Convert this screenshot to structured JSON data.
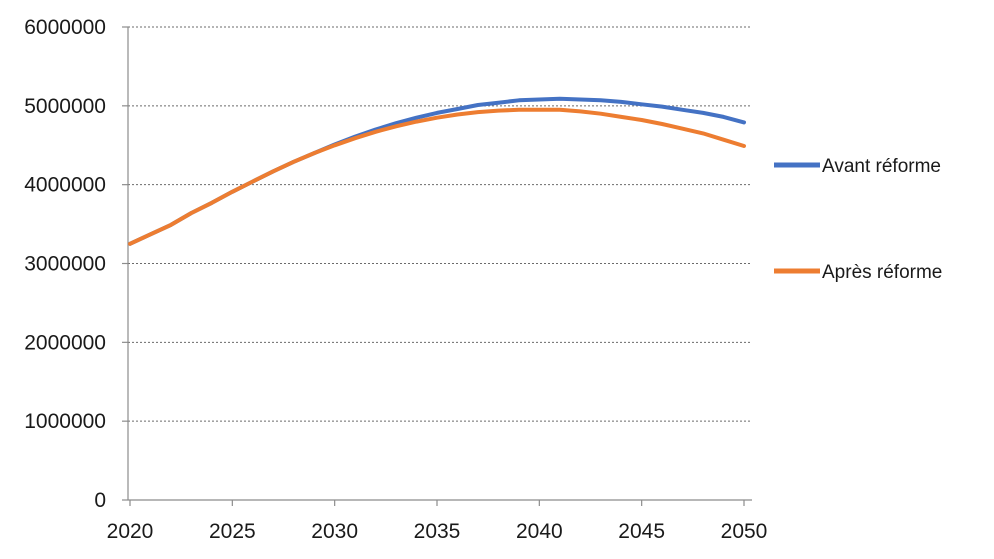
{
  "chart_data": {
    "type": "line",
    "title": "",
    "xlabel": "",
    "ylabel": "",
    "xlim": [
      2020,
      2050
    ],
    "ylim": [
      0,
      6000000
    ],
    "x_ticks": [
      2020,
      2025,
      2030,
      2035,
      2040,
      2045,
      2050
    ],
    "y_ticks": [
      0,
      1000000,
      2000000,
      3000000,
      4000000,
      5000000,
      6000000
    ],
    "grid": "horizontal",
    "legend_position": "right",
    "x": [
      2020,
      2021,
      2022,
      2023,
      2024,
      2025,
      2026,
      2027,
      2028,
      2029,
      2030,
      2031,
      2032,
      2033,
      2034,
      2035,
      2036,
      2037,
      2038,
      2039,
      2040,
      2041,
      2042,
      2043,
      2044,
      2045,
      2046,
      2047,
      2048,
      2049,
      2050
    ],
    "series": [
      {
        "name": "Avant réforme",
        "color": "#4472C4",
        "values": [
          3250000,
          3370000,
          3490000,
          3640000,
          3770000,
          3910000,
          4040000,
          4170000,
          4290000,
          4400000,
          4510000,
          4610000,
          4700000,
          4780000,
          4850000,
          4910000,
          4960000,
          5010000,
          5040000,
          5070000,
          5080000,
          5090000,
          5080000,
          5070000,
          5050000,
          5020000,
          4990000,
          4950000,
          4910000,
          4860000,
          4790000
        ]
      },
      {
        "name": "Après réforme",
        "color": "#ED7D31",
        "values": [
          3250000,
          3370000,
          3490000,
          3640000,
          3770000,
          3910000,
          4040000,
          4170000,
          4290000,
          4400000,
          4500000,
          4590000,
          4670000,
          4740000,
          4800000,
          4850000,
          4890000,
          4920000,
          4940000,
          4950000,
          4950000,
          4950000,
          4930000,
          4900000,
          4860000,
          4820000,
          4770000,
          4710000,
          4650000,
          4570000,
          4490000
        ]
      }
    ]
  }
}
